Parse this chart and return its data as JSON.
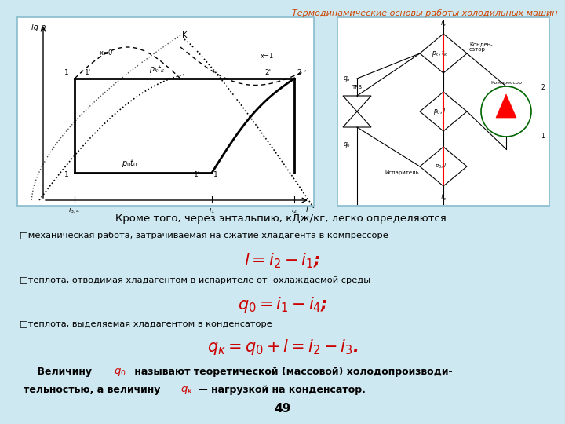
{
  "title": "Термодинамические основы работы холодильных машин",
  "bg_color": "#cde8f0",
  "page_number": "49",
  "intro_text": "Кроме того, через энтальпию, кДж/кг, легко определяются:",
  "bullet1_text": "□механическая работа, затрачиваемая на сжатие хладагента в компрессоре",
  "formula1": "$l = i_2 - i_1$;",
  "bullet2_text": "□теплота, отводимая хладагентом в испарителе от  охлаждаемой среды",
  "formula2": "$q_0  = i_1 - i_4$;",
  "bullet3_text": "□теплота, выделяемая хладагентом в конденсаторе",
  "formula3": "$q_\\kappa = q_0 + l = i_2 - i_3$."
}
